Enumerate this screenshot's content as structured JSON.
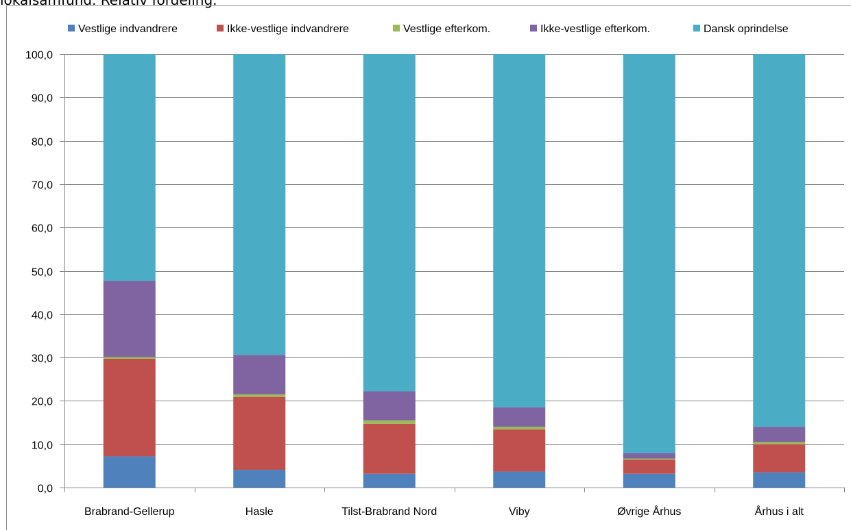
{
  "caption": "lokalsamfund. Relativ fordeling.",
  "chart_data": {
    "type": "bar",
    "stacked": true,
    "categories": [
      "Brabrand-Gellerup",
      "Hasle",
      "Tilst-Brabrand Nord",
      "Viby",
      "Øvrige Århus",
      "Århus i alt"
    ],
    "series": [
      {
        "name": "Vestlige indvandrere",
        "color": "#4f81bd",
        "values": [
          7.2,
          4.1,
          3.2,
          3.7,
          3.2,
          3.5
        ]
      },
      {
        "name": "Ikke-vestlige indvandrere",
        "color": "#c0504d",
        "values": [
          22.5,
          16.8,
          11.5,
          9.7,
          3.2,
          6.5
        ]
      },
      {
        "name": "Vestlige efterkom.",
        "color": "#9bbb59",
        "values": [
          0.4,
          0.6,
          0.8,
          0.6,
          0.3,
          0.5
        ]
      },
      {
        "name": "Ikke-vestlige efterkom.",
        "color": "#8064a2",
        "values": [
          17.6,
          9.1,
          6.7,
          4.5,
          1.2,
          3.5
        ]
      },
      {
        "name": "Dansk oprindelse",
        "color": "#4bacc6",
        "values": [
          52.3,
          69.4,
          77.8,
          81.5,
          92.1,
          86.0
        ]
      }
    ],
    "ylim": [
      0,
      100
    ],
    "yticks": [
      "0,0",
      "10,0",
      "20,0",
      "30,0",
      "40,0",
      "50,0",
      "60,0",
      "70,0",
      "80,0",
      "90,0",
      "100,0"
    ],
    "grid": true,
    "legend": "top"
  }
}
